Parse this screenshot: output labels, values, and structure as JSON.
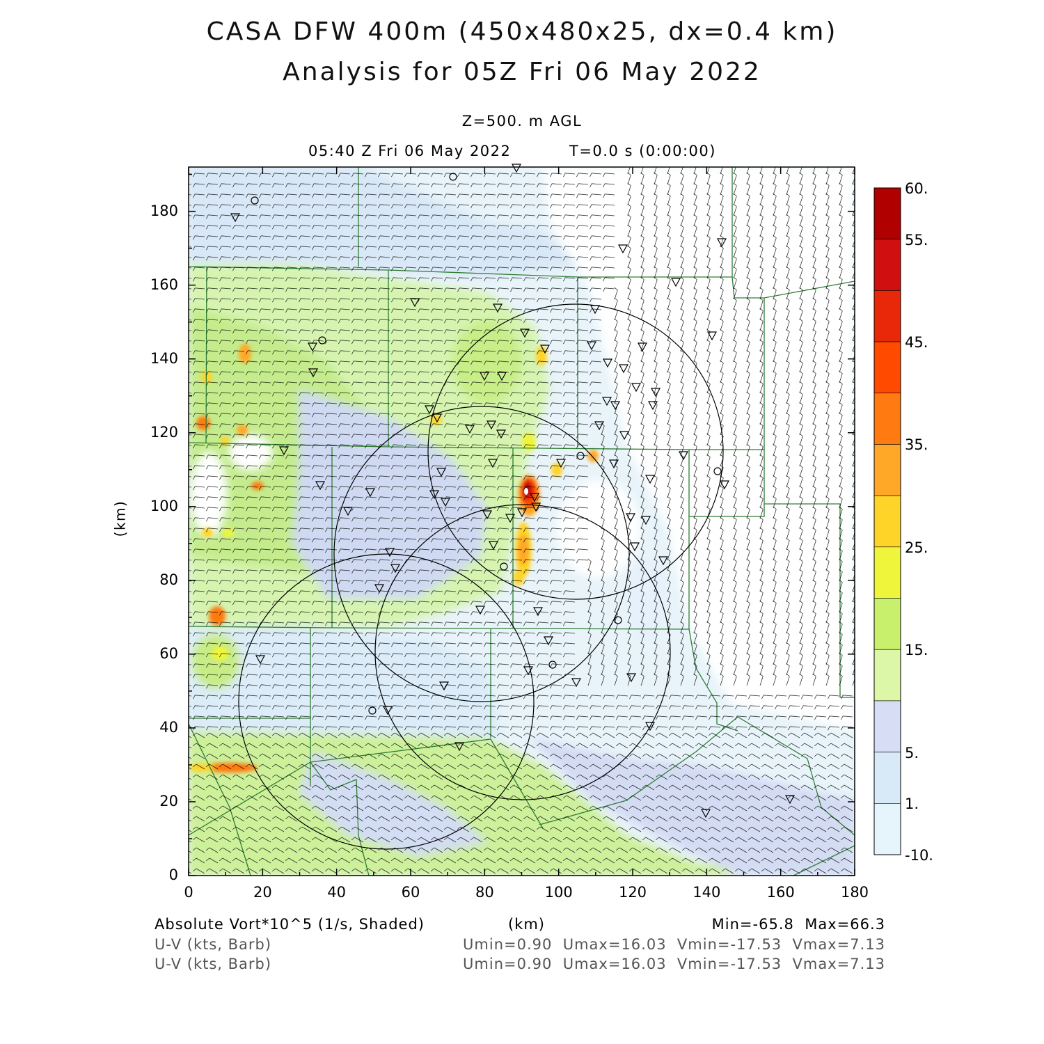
{
  "header": {
    "title_line1": "CASA DFW 400m (450x480x25, dx=0.4 km)",
    "title_line2": "Analysis for 05Z Fri 06 May 2022",
    "level": "Z=500. m AGL",
    "valid_time": "05:40 Z Fri 06 May 2022",
    "forecast_time": "T=0.0 s (0:00:00)"
  },
  "axes": {
    "x_label": "(km)",
    "y_label": "(km)",
    "x_range": [
      0,
      180
    ],
    "y_range": [
      0,
      192
    ],
    "x_ticks": [
      "0",
      "20",
      "40",
      "60",
      "80",
      "100",
      "120",
      "140",
      "160",
      "180"
    ],
    "y_ticks": [
      "0",
      "20",
      "40",
      "60",
      "80",
      "100",
      "120",
      "140",
      "160",
      "180"
    ]
  },
  "colorbar": {
    "labels": [
      "60.",
      "55.",
      "45.",
      "35.",
      "25.",
      "15.",
      "5.",
      "1.",
      "-10."
    ],
    "colors": [
      "#b00000",
      "#d01010",
      "#e82808",
      "#ff4a00",
      "#ff7a10",
      "#ffa828",
      "#ffd428",
      "#eef53a",
      "#c8f06c",
      "#ddf7a8",
      "#d7ddf4",
      "#d8eaf8",
      "#e6f4fb"
    ]
  },
  "footer": {
    "field": "Absolute Vort*10^5 (1/s, Shaded)",
    "x_unit": "(km)",
    "minmax": "Min=-65.8  Max=66.3",
    "barb1": "U-V (kts, Barb)",
    "barb1_stats": "Umin=0.90  Umax=16.03  Vmin=-17.53  Vmax=7.13",
    "barb2": "U-V (kts, Barb)",
    "barb2_stats": "Umin=0.90  Umax=16.03  Vmin=-17.53  Vmax=7.13"
  },
  "map_features": {
    "radar_range_rings": 4,
    "station_markers": "triangles and circles",
    "county_boundaries": true,
    "wind_barbs": true
  },
  "colors": {
    "county_lines": "#2e7d32",
    "rings": "#000000",
    "barbs": "#000000"
  }
}
